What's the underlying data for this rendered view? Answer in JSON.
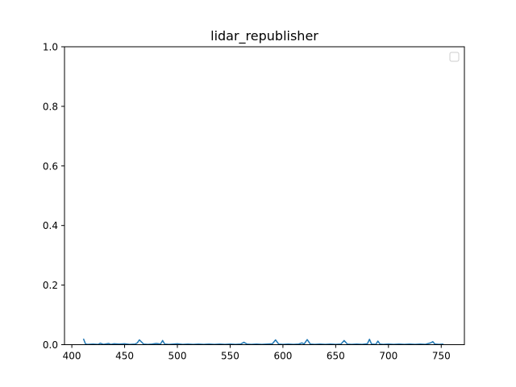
{
  "chart_data": {
    "type": "line",
    "title": "lidar_republisher",
    "xlabel": "",
    "ylabel": "",
    "xlim": [
      393.05,
      771.95
    ],
    "ylim": [
      0.0,
      1.0
    ],
    "xticks": [
      400,
      450,
      500,
      550,
      600,
      650,
      700,
      750
    ],
    "xtick_labels": [
      "400",
      "450",
      "500",
      "550",
      "600",
      "650",
      "700",
      "750"
    ],
    "yticks": [
      0.0,
      0.2,
      0.4,
      0.6,
      0.8,
      1.0
    ],
    "ytick_labels": [
      "0.0",
      "0.2",
      "0.4",
      "0.6",
      "0.8",
      "1.0"
    ],
    "grid": false,
    "legend": {
      "location": "upper right",
      "entries": []
    },
    "series": [
      {
        "color": "#1f77b4",
        "x": [
          411,
          413,
          415,
          420,
          425,
          427,
          430,
          435,
          437,
          440,
          445,
          450,
          455,
          460,
          462,
          464,
          468,
          472,
          476,
          480,
          484,
          486,
          488,
          492,
          496,
          500,
          505,
          510,
          515,
          520,
          525,
          530,
          535,
          540,
          545,
          550,
          555,
          560,
          563,
          566,
          570,
          575,
          580,
          585,
          590,
          593,
          596,
          600,
          605,
          610,
          615,
          618,
          620,
          623,
          626,
          630,
          635,
          640,
          645,
          650,
          655,
          658,
          661,
          665,
          670,
          675,
          680,
          682,
          684,
          688,
          690,
          692,
          695,
          700,
          705,
          710,
          715,
          720,
          725,
          730,
          735,
          740,
          742,
          744,
          748,
          752
        ],
        "y": [
          0.02,
          0.002,
          0.001,
          0.002,
          0.001,
          0.005,
          0.001,
          0.004,
          0.001,
          0.003,
          0.002,
          0.003,
          0.001,
          0.002,
          0.006,
          0.016,
          0.002,
          0.001,
          0.002,
          0.004,
          0.002,
          0.014,
          0.002,
          0.001,
          0.002,
          0.003,
          0.001,
          0.002,
          0.001,
          0.002,
          0.001,
          0.002,
          0.001,
          0.002,
          0.001,
          0.002,
          0.001,
          0.002,
          0.008,
          0.002,
          0.001,
          0.002,
          0.001,
          0.002,
          0.003,
          0.016,
          0.002,
          0.001,
          0.002,
          0.001,
          0.002,
          0.006,
          0.002,
          0.017,
          0.002,
          0.001,
          0.002,
          0.001,
          0.002,
          0.001,
          0.002,
          0.014,
          0.002,
          0.001,
          0.002,
          0.001,
          0.003,
          0.018,
          0.002,
          0.001,
          0.012,
          0.002,
          0.001,
          0.002,
          0.001,
          0.002,
          0.001,
          0.002,
          0.001,
          0.002,
          0.001,
          0.006,
          0.01,
          0.002,
          0.001,
          0.002
        ]
      }
    ]
  }
}
